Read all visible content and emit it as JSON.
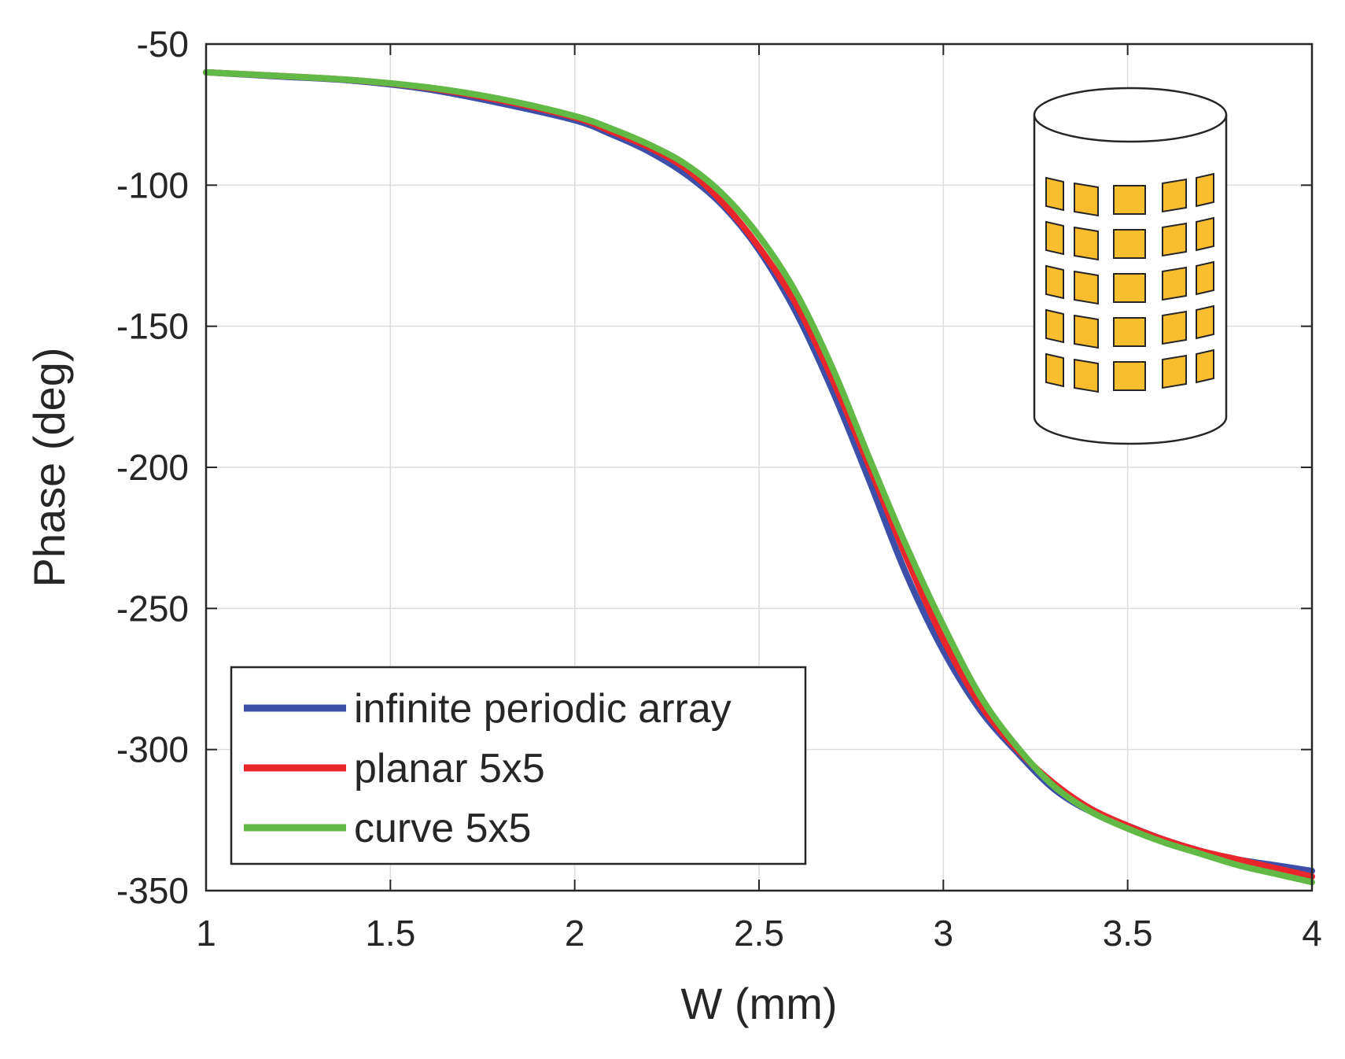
{
  "chart_data": {
    "type": "line",
    "title": "",
    "xlabel": "W (mm)",
    "ylabel": "Phase (deg)",
    "xlim": [
      1,
      4
    ],
    "ylim": [
      -350,
      -50
    ],
    "xticks": [
      1,
      1.5,
      2,
      2.5,
      3,
      3.5,
      4
    ],
    "xtick_labels": [
      "1",
      "1.5",
      "2",
      "2.5",
      "3",
      "3.5",
      "4"
    ],
    "yticks": [
      -350,
      -300,
      -250,
      -200,
      -150,
      -100,
      -50
    ],
    "ytick_labels": [
      "-350",
      "-300",
      "-250",
      "-200",
      "-150",
      "-100",
      "-50"
    ],
    "grid": true,
    "legend_position": "bottom-left",
    "series": [
      {
        "name": "infinite periodic array",
        "color": "#3d4fa8",
        "x": [
          1.0,
          1.2,
          1.4,
          1.6,
          1.8,
          2.0,
          2.1,
          2.2,
          2.3,
          2.4,
          2.5,
          2.6,
          2.7,
          2.8,
          2.9,
          3.0,
          3.1,
          3.2,
          3.3,
          3.4,
          3.5,
          3.6,
          3.7,
          3.8,
          3.9,
          4.0
        ],
        "values": [
          -60,
          -61.5,
          -63,
          -66,
          -71,
          -77,
          -82,
          -88,
          -96,
          -107,
          -123,
          -145,
          -173,
          -205,
          -238,
          -265,
          -286,
          -301,
          -314,
          -322,
          -327,
          -332,
          -336,
          -339,
          -341,
          -343
        ]
      },
      {
        "name": "planar 5x5",
        "color": "#e8262b",
        "x": [
          1.0,
          1.2,
          1.4,
          1.6,
          1.8,
          2.0,
          2.1,
          2.2,
          2.3,
          2.4,
          2.5,
          2.6,
          2.7,
          2.8,
          2.9,
          3.0,
          3.1,
          3.2,
          3.3,
          3.4,
          3.5,
          3.6,
          3.7,
          3.8,
          3.9,
          4.0
        ],
        "values": [
          -60,
          -61.3,
          -62.8,
          -65.5,
          -70,
          -76,
          -81,
          -86.5,
          -94,
          -106,
          -122,
          -142,
          -169,
          -200,
          -232,
          -261,
          -284,
          -300,
          -312,
          -321,
          -327,
          -332,
          -336,
          -339,
          -342,
          -345
        ]
      },
      {
        "name": "curve 5x5",
        "color": "#62b946",
        "x": [
          1.0,
          1.2,
          1.4,
          1.6,
          1.8,
          2.0,
          2.1,
          2.2,
          2.3,
          2.4,
          2.5,
          2.6,
          2.7,
          2.8,
          2.9,
          3.0,
          3.1,
          3.2,
          3.3,
          3.4,
          3.5,
          3.6,
          3.7,
          3.8,
          3.9,
          4.0
        ],
        "values": [
          -60,
          -61.3,
          -62.8,
          -65.3,
          -69.5,
          -75.5,
          -80,
          -85.5,
          -92.5,
          -103,
          -118,
          -138,
          -165,
          -197,
          -228,
          -256,
          -281,
          -299,
          -313,
          -322,
          -328,
          -333,
          -337,
          -341,
          -344,
          -347
        ]
      }
    ],
    "inset": {
      "description_name": "cylinder-with-5x5-patch-array",
      "patch_color": "#f9bd2e"
    }
  }
}
